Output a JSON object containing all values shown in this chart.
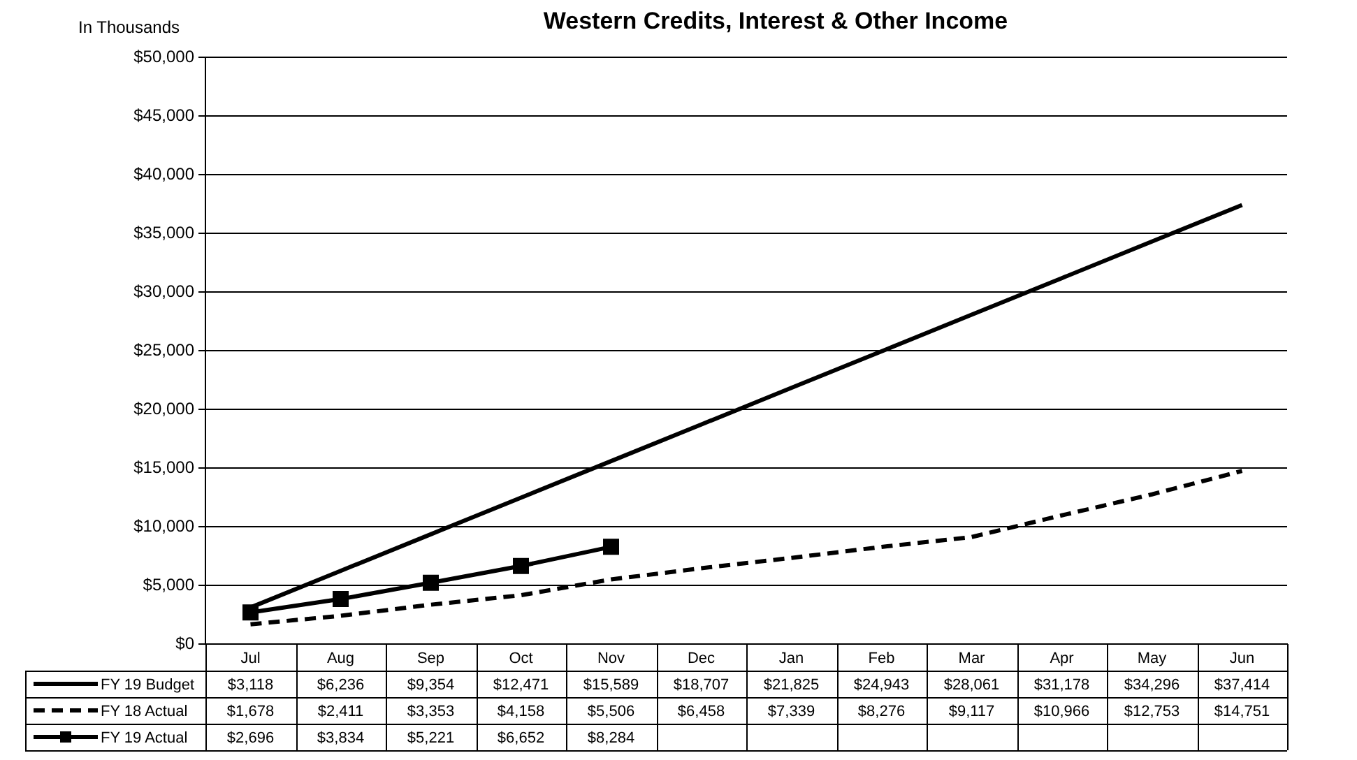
{
  "chart_data": {
    "type": "line",
    "title": "Western Credits, Interest & Other Income",
    "ylabel": "In Thousands",
    "categories": [
      "Jul",
      "Aug",
      "Sep",
      "Oct",
      "Nov",
      "Dec",
      "Jan",
      "Feb",
      "Mar",
      "Apr",
      "May",
      "Jun"
    ],
    "series": [
      {
        "name": "FY 19 Budget",
        "color": "#000000",
        "line_style": "solid",
        "marker": "none",
        "values": [
          3118,
          6236,
          9354,
          12471,
          15589,
          18707,
          21825,
          24943,
          28061,
          31178,
          34296,
          37414
        ],
        "value_labels": [
          "$3,118",
          "$6,236",
          "$9,354",
          "$12,471",
          "$15,589",
          "$18,707",
          "$21,825",
          "$24,943",
          "$28,061",
          "$31,178",
          "$34,296",
          "$37,414"
        ]
      },
      {
        "name": "FY 18 Actual",
        "color": "#000000",
        "line_style": "dashed",
        "marker": "none",
        "values": [
          1678,
          2411,
          3353,
          4158,
          5506,
          6458,
          7339,
          8276,
          9117,
          10966,
          12753,
          14751
        ],
        "value_labels": [
          "$1,678",
          "$2,411",
          "$3,353",
          "$4,158",
          "$5,506",
          "$6,458",
          "$7,339",
          "$8,276",
          "$9,117",
          "$10,966",
          "$12,753",
          "$14,751"
        ]
      },
      {
        "name": "FY 19 Actual",
        "color": "#000000",
        "line_style": "solid",
        "marker": "square",
        "values": [
          2696,
          3834,
          5221,
          6652,
          8284,
          null,
          null,
          null,
          null,
          null,
          null,
          null
        ],
        "value_labels": [
          "$2,696",
          "$3,834",
          "$5,221",
          "$6,652",
          "$8,284",
          null,
          null,
          null,
          null,
          null,
          null,
          null
        ]
      }
    ],
    "ylim": [
      0,
      50000
    ],
    "yticks": [
      {
        "value": 0,
        "label": "$0"
      },
      {
        "value": 5000,
        "label": "$5,000"
      },
      {
        "value": 10000,
        "label": "$10,000"
      },
      {
        "value": 15000,
        "label": "$15,000"
      },
      {
        "value": 20000,
        "label": "$20,000"
      },
      {
        "value": 25000,
        "label": "$25,000"
      },
      {
        "value": 30000,
        "label": "$30,000"
      },
      {
        "value": 35000,
        "label": "$35,000"
      },
      {
        "value": 40000,
        "label": "$40,000"
      },
      {
        "value": 45000,
        "label": "$45,000"
      },
      {
        "value": 50000,
        "label": "$50,000"
      }
    ],
    "grid": "y",
    "legend": "bottom left"
  }
}
